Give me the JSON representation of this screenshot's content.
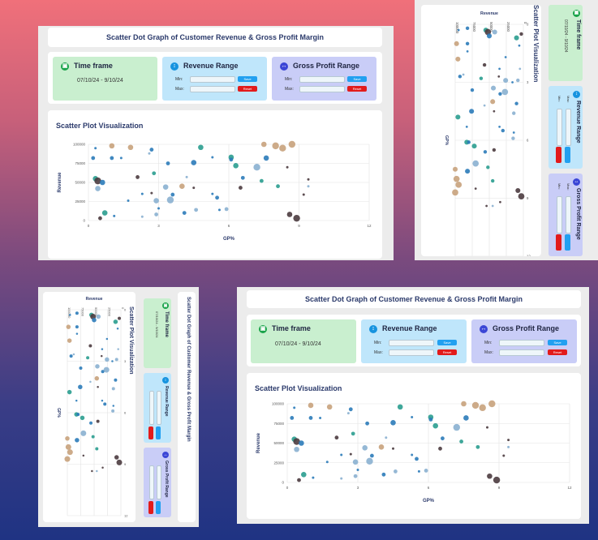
{
  "title": "Scatter Dot Graph of Customer Revenue & Gross Profit Margin",
  "timeframe": {
    "label": "Time frame",
    "value": "07/10/24 - 9/10/24",
    "icon": "calendar-icon"
  },
  "revenue_range": {
    "label": "Revenue Range",
    "min_label": "Min:",
    "max_label": "Max:",
    "save_label": "Save",
    "reset_label": "Reset",
    "icon": "arrow-up-down-icon"
  },
  "gp_range": {
    "label": "Gross Profit Range",
    "min_label": "Min:",
    "max_label": "Max:",
    "save_label": "Save",
    "reset_label": "Reset",
    "icon": "arrow-left-right-icon"
  },
  "chart_title": "Scatter Plot Visualization",
  "colors": {
    "green_panel": "#c9efcf",
    "blue_panel": "#bfe6fb",
    "lavender_panel": "#c9cdf7",
    "save": "#22a0f0",
    "reset": "#e21b1b"
  },
  "chart_data": {
    "type": "scatter",
    "xlabel": "GP%",
    "ylabel": "Revenue",
    "xlim": [
      0,
      12
    ],
    "ylim": [
      0,
      100000
    ],
    "x_ticks": [
      "0",
      "3",
      "6",
      "9",
      "12"
    ],
    "y_ticks": [
      "0",
      "25000",
      "50000",
      "75000",
      "100000"
    ],
    "points": [
      {
        "x": 0.2,
        "y": 82000,
        "size": 2,
        "color": "#2b7bb9"
      },
      {
        "x": 0.3,
        "y": 95000,
        "size": 1,
        "color": "#2b7bb9"
      },
      {
        "x": 0.3,
        "y": 55000,
        "size": 3,
        "color": "#2a9d8f"
      },
      {
        "x": 0.4,
        "y": 42000,
        "size": 3,
        "color": "#8ab0d0"
      },
      {
        "x": 0.4,
        "y": 52000,
        "size": 4,
        "color": "#4b3b3f"
      },
      {
        "x": 0.6,
        "y": 50000,
        "size": 3,
        "color": "#2b7bb9"
      },
      {
        "x": 0.5,
        "y": 3000,
        "size": 2,
        "color": "#4b3b3f"
      },
      {
        "x": 0.7,
        "y": 10000,
        "size": 3,
        "color": "#2a9d8f"
      },
      {
        "x": 1.0,
        "y": 98000,
        "size": 3,
        "color": "#c8a27c"
      },
      {
        "x": 1.0,
        "y": 82000,
        "size": 2,
        "color": "#2b7bb9"
      },
      {
        "x": 1.1,
        "y": 6000,
        "size": 1,
        "color": "#2b7bb9"
      },
      {
        "x": 1.4,
        "y": 82000,
        "size": 1,
        "color": "#2b7bb9"
      },
      {
        "x": 1.7,
        "y": 26000,
        "size": 1,
        "color": "#2b7bb9"
      },
      {
        "x": 1.8,
        "y": 96000,
        "size": 3,
        "color": "#c8a27c"
      },
      {
        "x": 2.1,
        "y": 57000,
        "size": 2,
        "color": "#4b3b3f"
      },
      {
        "x": 2.3,
        "y": 35000,
        "size": 1,
        "color": "#2b7bb9"
      },
      {
        "x": 2.3,
        "y": 5000,
        "size": 1,
        "color": "#8ab0d0"
      },
      {
        "x": 2.6,
        "y": 88000,
        "size": 1,
        "color": "#8ab0d0"
      },
      {
        "x": 2.7,
        "y": 93000,
        "size": 2,
        "color": "#2b7bb9"
      },
      {
        "x": 2.7,
        "y": 36000,
        "size": 1,
        "color": "#4b3b3f"
      },
      {
        "x": 2.8,
        "y": 62000,
        "size": 2,
        "color": "#2a9d8f"
      },
      {
        "x": 2.9,
        "y": 8000,
        "size": 2,
        "color": "#8ab0d0"
      },
      {
        "x": 2.9,
        "y": 26000,
        "size": 3,
        "color": "#8ab0d0"
      },
      {
        "x": 3.0,
        "y": 16000,
        "size": 1,
        "color": "#2b7bb9"
      },
      {
        "x": 3.3,
        "y": 44000,
        "size": 3,
        "color": "#8ab0d0"
      },
      {
        "x": 3.4,
        "y": 75000,
        "size": 2,
        "color": "#2b7bb9"
      },
      {
        "x": 3.5,
        "y": 27000,
        "size": 4,
        "color": "#8ab0d0"
      },
      {
        "x": 3.6,
        "y": 34000,
        "size": 2,
        "color": "#2b7bb9"
      },
      {
        "x": 4.0,
        "y": 45000,
        "size": 3,
        "color": "#c8a27c"
      },
      {
        "x": 4.2,
        "y": 57000,
        "size": 1,
        "color": "#8ab0d0"
      },
      {
        "x": 4.1,
        "y": 10000,
        "size": 2,
        "color": "#2b7bb9"
      },
      {
        "x": 4.5,
        "y": 76000,
        "size": 3,
        "color": "#2b7bb9"
      },
      {
        "x": 4.5,
        "y": 43000,
        "size": 1,
        "color": "#4b3b3f"
      },
      {
        "x": 4.6,
        "y": 14000,
        "size": 2,
        "color": "#8ab0d0"
      },
      {
        "x": 4.8,
        "y": 96000,
        "size": 3,
        "color": "#2a9d8f"
      },
      {
        "x": 5.3,
        "y": 83000,
        "size": 1,
        "color": "#2b7bb9"
      },
      {
        "x": 5.3,
        "y": 35000,
        "size": 1,
        "color": "#2b7bb9"
      },
      {
        "x": 5.5,
        "y": 30000,
        "size": 2,
        "color": "#2b7bb9"
      },
      {
        "x": 5.6,
        "y": 14000,
        "size": 1,
        "color": "#2b7bb9"
      },
      {
        "x": 5.9,
        "y": 15000,
        "size": 2,
        "color": "#8ab0d0"
      },
      {
        "x": 6.1,
        "y": 83000,
        "size": 3,
        "color": "#2a9d8f"
      },
      {
        "x": 6.1,
        "y": 80000,
        "size": 2,
        "color": "#2b7bb9"
      },
      {
        "x": 6.3,
        "y": 72000,
        "size": 3,
        "color": "#2a9d8f"
      },
      {
        "x": 6.5,
        "y": 43000,
        "size": 2,
        "color": "#4b3b3f"
      },
      {
        "x": 6.6,
        "y": 56000,
        "size": 2,
        "color": "#2b7bb9"
      },
      {
        "x": 7.2,
        "y": 70000,
        "size": 4,
        "color": "#8ab0d0"
      },
      {
        "x": 7.4,
        "y": 52000,
        "size": 2,
        "color": "#2a9d8f"
      },
      {
        "x": 7.5,
        "y": 100000,
        "size": 3,
        "color": "#c8a27c"
      },
      {
        "x": 7.6,
        "y": 82000,
        "size": 3,
        "color": "#2b7bb9"
      },
      {
        "x": 8.0,
        "y": 98000,
        "size": 4,
        "color": "#c8a27c"
      },
      {
        "x": 8.1,
        "y": 45000,
        "size": 2,
        "color": "#2a9d8f"
      },
      {
        "x": 8.3,
        "y": 95000,
        "size": 4,
        "color": "#c8a27c"
      },
      {
        "x": 8.5,
        "y": 70000,
        "size": 1,
        "color": "#4b3b3f"
      },
      {
        "x": 8.6,
        "y": 8000,
        "size": 3,
        "color": "#4b3b3f"
      },
      {
        "x": 8.7,
        "y": 100000,
        "size": 4,
        "color": "#c8a27c"
      },
      {
        "x": 8.9,
        "y": 3000,
        "size": 4,
        "color": "#4b3b3f"
      },
      {
        "x": 9.2,
        "y": 34000,
        "size": 1,
        "color": "#4b3b3f"
      },
      {
        "x": 9.4,
        "y": 45000,
        "size": 1,
        "color": "#8ab0d0"
      },
      {
        "x": 9.4,
        "y": 54000,
        "size": 1,
        "color": "#4b3b3f"
      }
    ]
  }
}
